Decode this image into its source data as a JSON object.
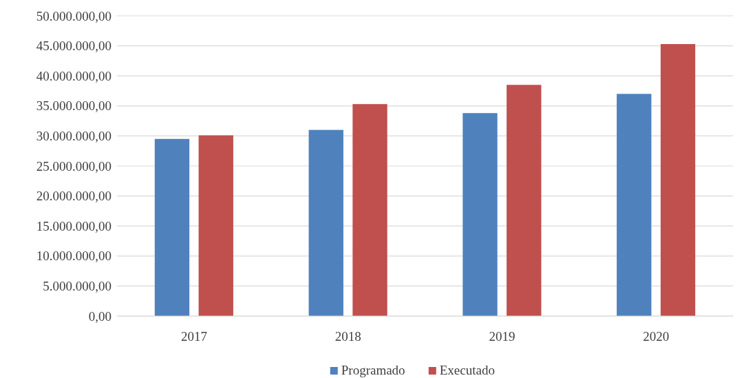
{
  "chart_data": {
    "type": "bar",
    "categories": [
      "2017",
      "2018",
      "2019",
      "2020"
    ],
    "series": [
      {
        "name": "Programado",
        "color": "#4f81bd",
        "values": [
          29500000,
          31000000,
          33800000,
          37000000
        ]
      },
      {
        "name": "Executado",
        "color": "#c0504d",
        "values": [
          30100000,
          35300000,
          38500000,
          45300000
        ]
      }
    ],
    "ylim": [
      0,
      50000000
    ],
    "yticks": [
      {
        "value": 0,
        "label": "0,00"
      },
      {
        "value": 5000000,
        "label": "5.000.000,00"
      },
      {
        "value": 10000000,
        "label": "10.000.000,00"
      },
      {
        "value": 15000000,
        "label": "15.000.000,00"
      },
      {
        "value": 20000000,
        "label": "20.000.000,00"
      },
      {
        "value": 25000000,
        "label": "25.000.000,00"
      },
      {
        "value": 30000000,
        "label": "30.000.000,00"
      },
      {
        "value": 35000000,
        "label": "35.000.000,00"
      },
      {
        "value": 40000000,
        "label": "40.000.000,00"
      },
      {
        "value": 45000000,
        "label": "45.000.000,00"
      },
      {
        "value": 50000000,
        "label": "50.000.000,00"
      }
    ],
    "grid": "y",
    "legend": "bottom"
  }
}
